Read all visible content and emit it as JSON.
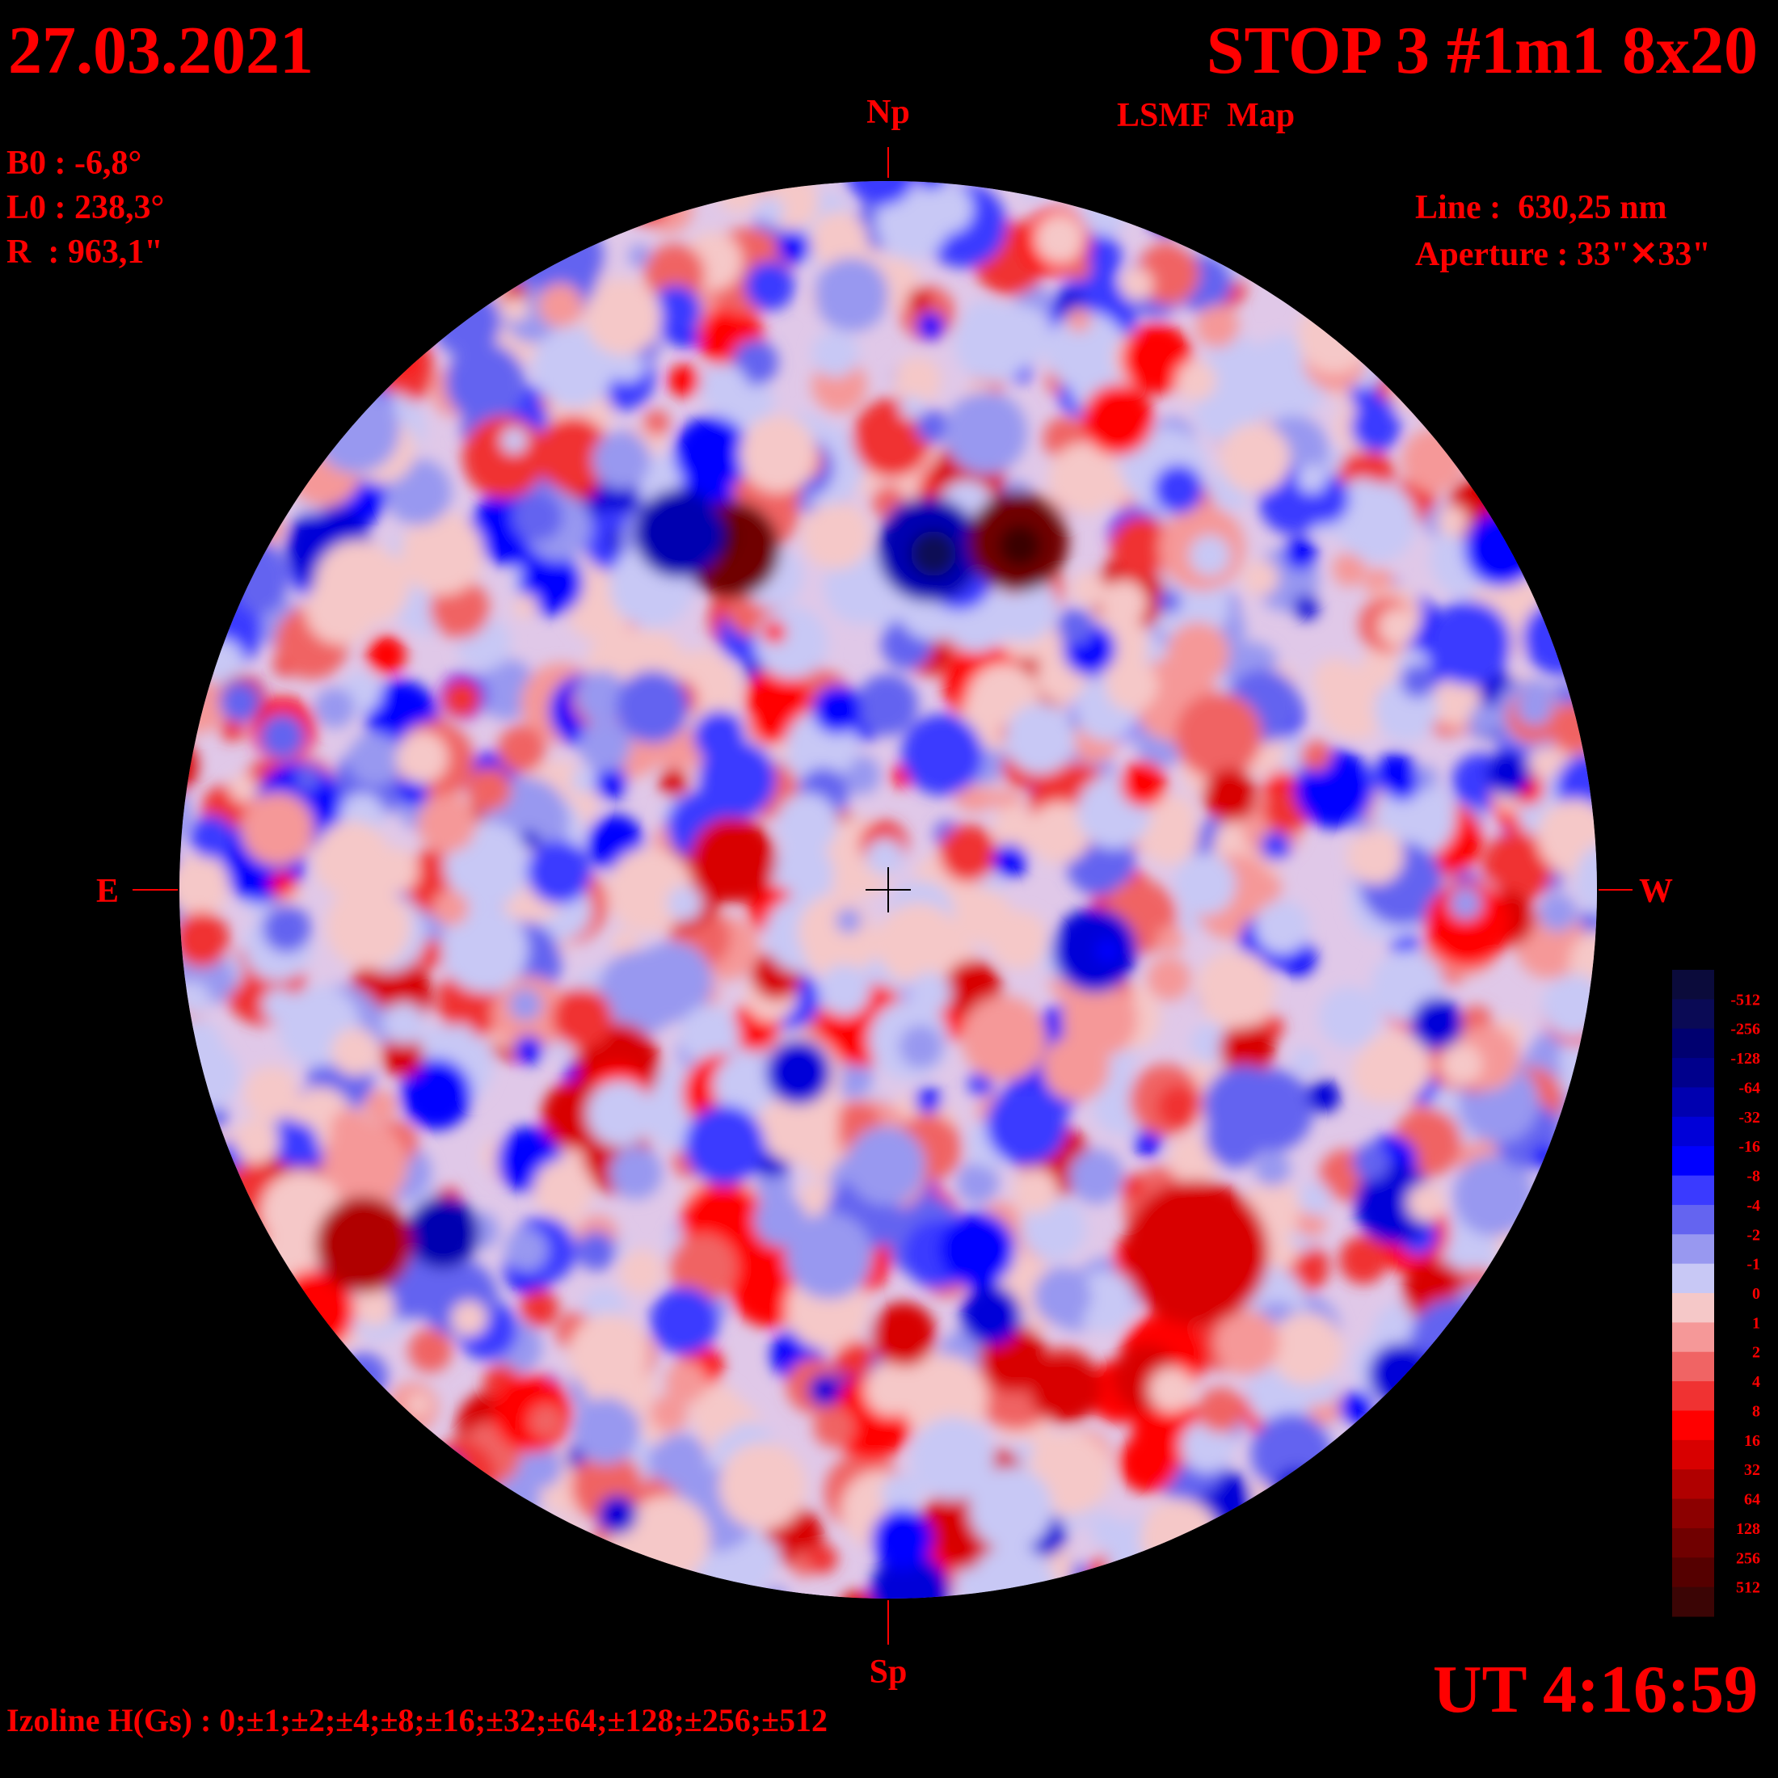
{
  "header": {
    "date": "27.03.2021",
    "title": "STOP 3 #1m1 8x20",
    "subtitle": "LSMF  Map"
  },
  "parameters": {
    "b0": "B0 : -6,8°",
    "l0": "L0 : 238,3°",
    "r": "R  : 963,1\"",
    "line": "Line :  630,25 nm",
    "aperture": "Aperture : 33\"✕33\""
  },
  "directions": {
    "north": "Np",
    "south": "Sp",
    "east": "E",
    "west": "W"
  },
  "time": "UT 4:16:59",
  "footer": "Izoline H(Gs) : 0;±1;±2;±4;±8;±16;±32;±64;±128;±256;±512",
  "colorbar": {
    "levels": [
      -512,
      -256,
      -128,
      -64,
      -32,
      -16,
      -8,
      -4,
      -2,
      -1,
      0,
      1,
      2,
      4,
      8,
      16,
      32,
      64,
      128,
      256,
      512
    ],
    "colors": [
      "#0b0b3b",
      "#0a0a55",
      "#000070",
      "#00008c",
      "#0000b0",
      "#0000d8",
      "#0000ff",
      "#3a3aff",
      "#6464f0",
      "#9898f0",
      "#c8c8f5",
      "#f5c8c8",
      "#f59898",
      "#f06464",
      "#f03232",
      "#ff0000",
      "#d80000",
      "#b00000",
      "#8c0000",
      "#700000",
      "#550000",
      "#3b0505"
    ]
  }
}
